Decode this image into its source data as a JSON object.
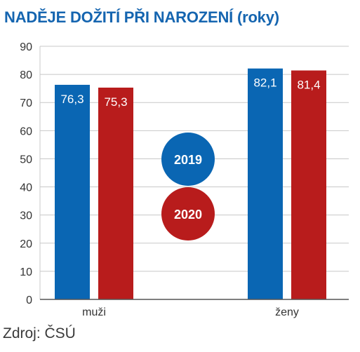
{
  "title": "NADĚJE DOŽITÍ PŘI NAROZENÍ (roky)",
  "source": "Zdroj: ČSÚ",
  "colors": {
    "series_2019": "#0a66b3",
    "series_2020": "#b81c1c",
    "title": "#1565b0",
    "gridline": "#c8c8c8",
    "axis": "#555555"
  },
  "chart_data": {
    "type": "bar",
    "title": "NADĚJE DOŽITÍ PŘI NAROZENÍ (roky)",
    "categories": [
      "muži",
      "ženy"
    ],
    "series": [
      {
        "name": "2019",
        "values": [
          76.3,
          82.1
        ],
        "labels": [
          "76,3",
          "82,1"
        ]
      },
      {
        "name": "2020",
        "values": [
          75.3,
          81.4
        ],
        "labels": [
          "75,3",
          "81,4"
        ]
      }
    ],
    "ylim": [
      0,
      90
    ],
    "yticks": [
      "0",
      "10",
      "20",
      "30",
      "40",
      "50",
      "60",
      "70",
      "80",
      "90"
    ],
    "xlabel": "",
    "ylabel": "",
    "grid": true,
    "legend": "center"
  }
}
